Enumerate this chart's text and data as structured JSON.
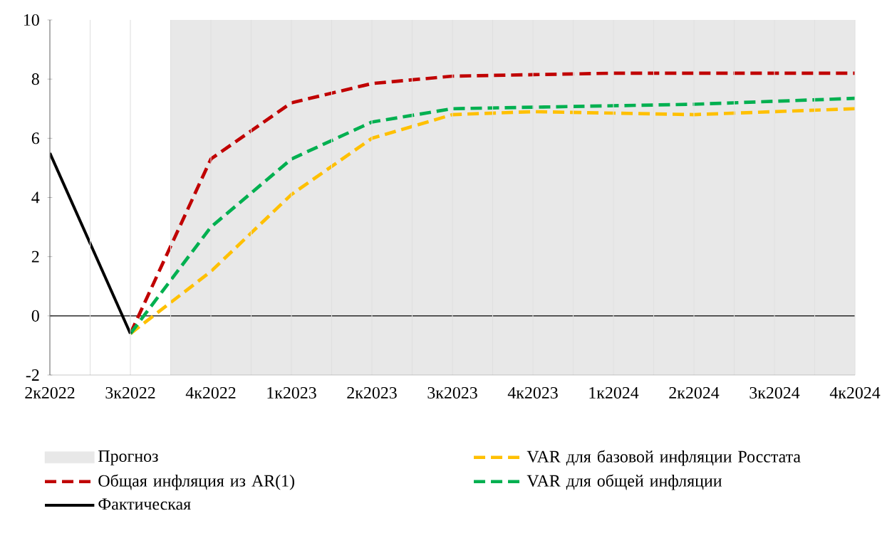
{
  "chart_data": {
    "type": "line",
    "categories": [
      "2к2022",
      "3к2022",
      "4к2022",
      "1к2023",
      "2к2023",
      "3к2023",
      "4к2023",
      "1к2024",
      "2к2024",
      "3к2024",
      "4к2024"
    ],
    "series": [
      {
        "name": "VAR для базовой инфляции Росстата",
        "color": "#ffc000",
        "line_style": "dashed",
        "values": [
          null,
          -0.6,
          1.5,
          4.1,
          6.0,
          6.8,
          6.9,
          6.85,
          6.8,
          6.9,
          7.0
        ]
      },
      {
        "name": "Общая инфляция из AR(1)",
        "color": "#c00000",
        "line_style": "dashed",
        "values": [
          null,
          -0.6,
          5.3,
          7.2,
          7.85,
          8.1,
          8.15,
          8.2,
          8.2,
          8.2,
          8.2
        ]
      },
      {
        "name": "VAR для общей инфляции",
        "color": "#00b050",
        "line_style": "dashed",
        "values": [
          null,
          -0.6,
          3.0,
          5.3,
          6.55,
          7.0,
          7.05,
          7.1,
          7.15,
          7.25,
          7.35
        ]
      },
      {
        "name": "Фактическая",
        "color": "#000000",
        "line_style": "solid",
        "values": [
          5.5,
          -0.6,
          null,
          null,
          null,
          null,
          null,
          null,
          null,
          null,
          null
        ]
      }
    ],
    "ylim": [
      -2,
      10
    ],
    "yticks": [
      -2,
      0,
      2,
      4,
      6,
      8,
      10
    ],
    "grid": "x",
    "legend": "bottom",
    "marker": "none",
    "bands": [
      {
        "axis": "x",
        "from": "4к2022",
        "to": "4к2024",
        "label": "Прогноз",
        "color": "#e8e8e8"
      }
    ],
    "ref_lines": [
      {
        "axis": "y",
        "value": 0,
        "color": "#000000"
      }
    ]
  }
}
